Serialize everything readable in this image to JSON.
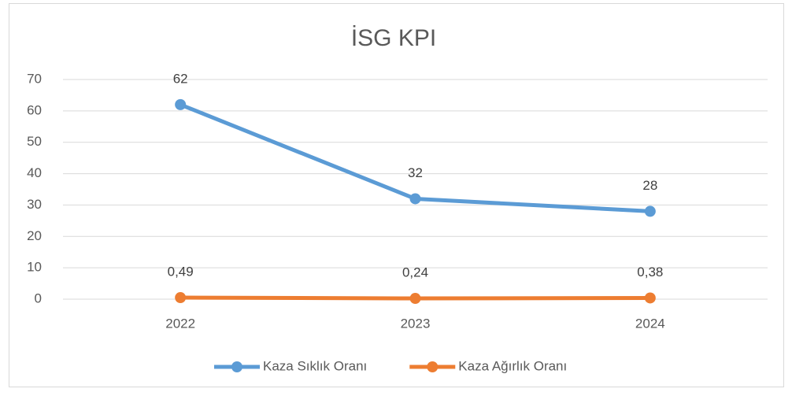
{
  "chart_data": {
    "type": "line",
    "title": "İSG KPI",
    "categories": [
      "2022",
      "2023",
      "2024"
    ],
    "series": [
      {
        "name": "Kaza Sıklık Oranı",
        "color": "#5b9bd5",
        "values": [
          62,
          32,
          28
        ]
      },
      {
        "name": "Kaza Ağırlık Oranı",
        "color": "#ed7d31",
        "values": [
          0.49,
          0.24,
          0.38
        ],
        "value_labels": [
          "0,49",
          "0,24",
          "0,38"
        ]
      }
    ],
    "ylim": [
      0,
      70
    ],
    "yticks": [
      0,
      10,
      20,
      30,
      40,
      50,
      60,
      70
    ],
    "grid": true,
    "legend": "bottom"
  }
}
